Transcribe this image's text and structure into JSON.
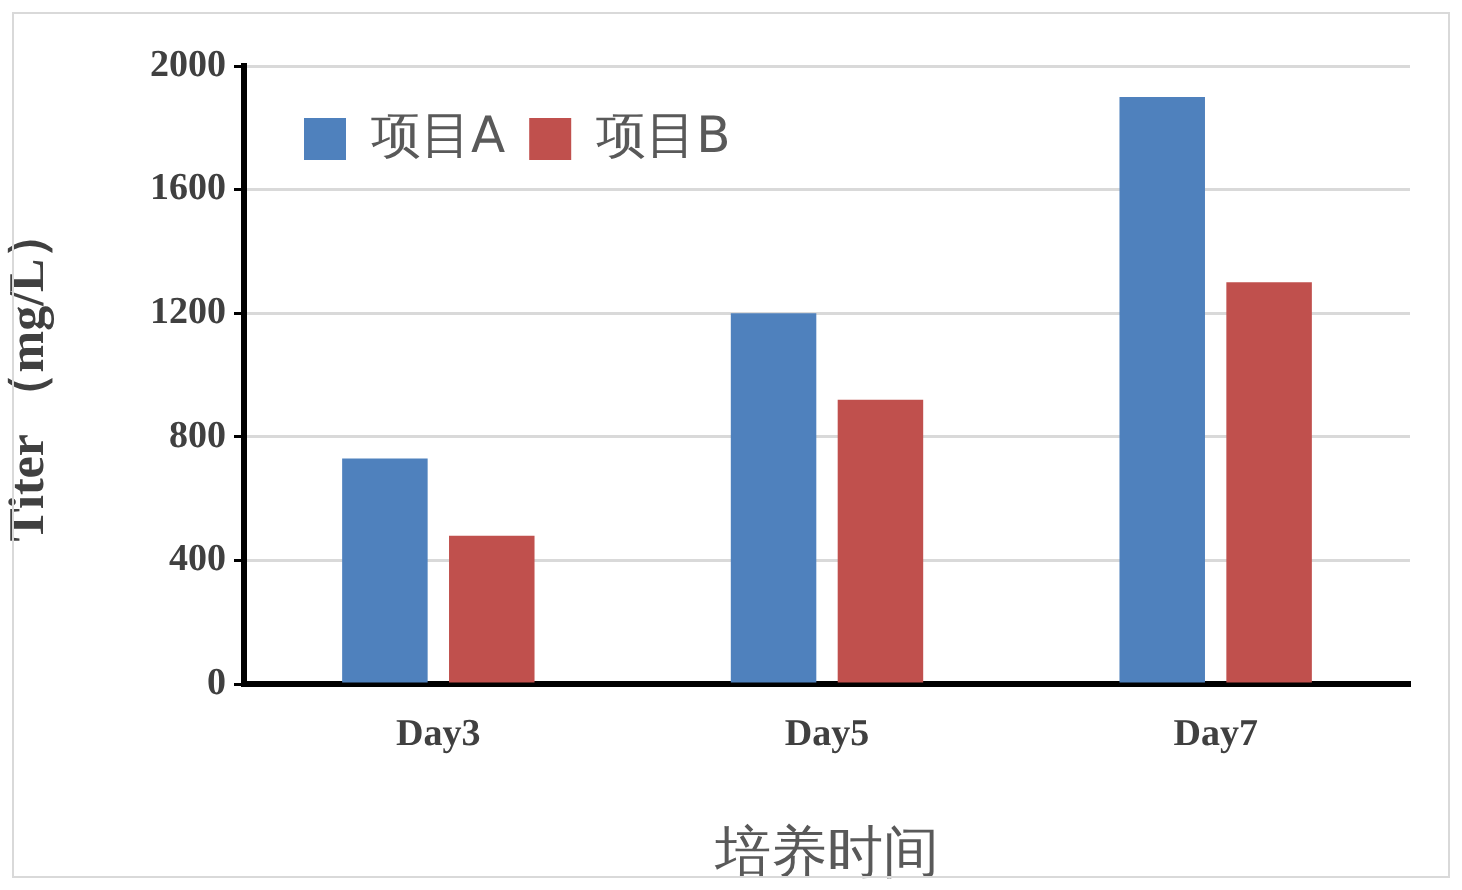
{
  "chart_data": {
    "type": "bar",
    "xlabel": "培养时间",
    "ylabel": "Titer （mg/L）",
    "categories": [
      "Day3",
      "Day5",
      "Day7"
    ],
    "series": [
      {
        "name": "项目A",
        "color": "#4f81bd",
        "values": [
          730,
          1200,
          1900
        ]
      },
      {
        "name": "项目B",
        "color": "#c0504d",
        "values": [
          480,
          920,
          1300
        ]
      }
    ],
    "ylim": [
      0,
      2000
    ],
    "yticks": [
      0,
      400,
      800,
      1200,
      1600,
      2000
    ],
    "grid": "y",
    "legend": "top left"
  }
}
